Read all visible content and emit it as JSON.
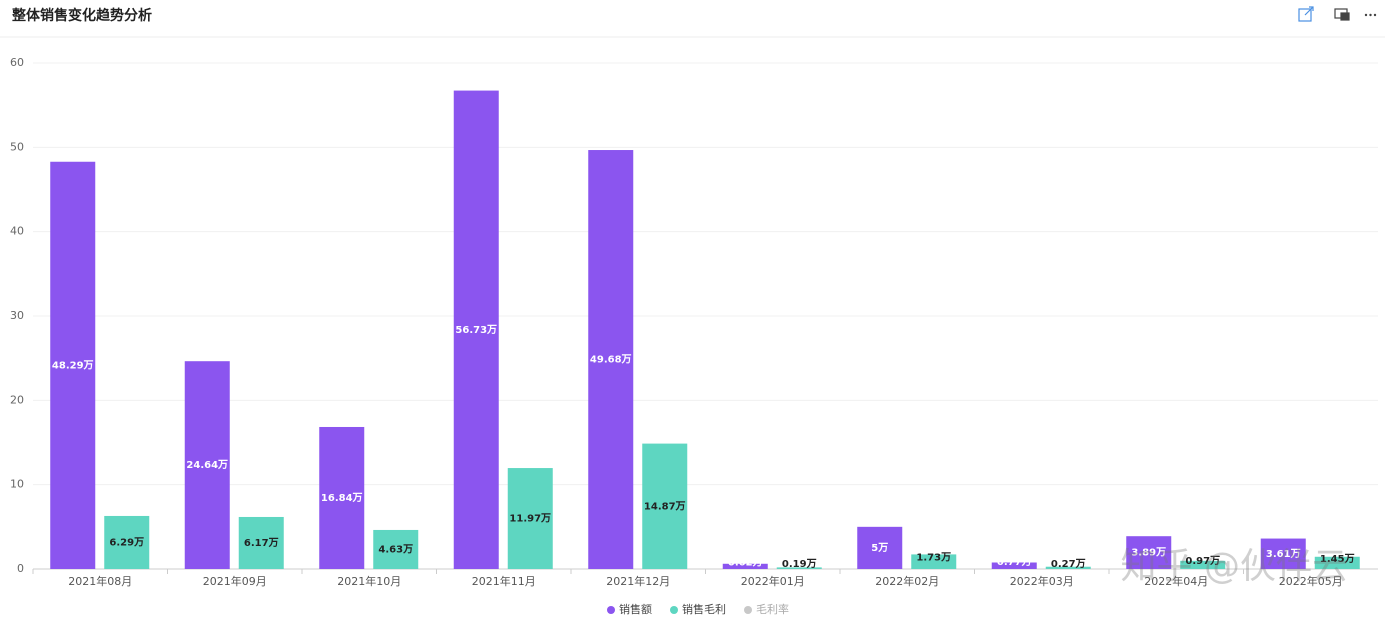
{
  "chart_data": {
    "type": "bar",
    "title": "整体销售变化趋势分析",
    "categories": [
      "2021年08月",
      "2021年09月",
      "2021年10月",
      "2021年11月",
      "2021年12月",
      "2022年01月",
      "2022年02月",
      "2022年03月",
      "2022年04月",
      "2022年05月"
    ],
    "series": [
      {
        "name": "销售额",
        "color": "#8b55ef",
        "values": [
          48.29,
          24.64,
          16.84,
          56.73,
          49.68,
          0.62,
          5,
          0.77,
          3.89,
          3.61
        ],
        "value_labels": [
          "48.29万",
          "24.64万",
          "16.84万",
          "56.73万",
          "49.68万",
          "0.62万",
          "5万",
          "0.77万",
          "3.89万",
          "3.61万"
        ]
      },
      {
        "name": "销售毛利",
        "color": "#5ed6c1",
        "values": [
          6.29,
          6.17,
          4.63,
          11.97,
          14.87,
          0.19,
          1.73,
          0.27,
          0.97,
          1.45
        ],
        "value_labels": [
          "6.29万",
          "6.17万",
          "4.63万",
          "11.97万",
          "14.87万",
          "0.19万",
          "1.73万",
          "0.27万",
          "0.97万",
          "1.45万"
        ]
      }
    ],
    "hidden_series": [
      {
        "name": "毛利率",
        "color": "#c8c8c8"
      }
    ],
    "ylim": [
      0,
      60
    ],
    "yticks": [
      0,
      10,
      20,
      30,
      40,
      50,
      60
    ],
    "grid": true,
    "watermark": "知乎 @伙伴云"
  }
}
